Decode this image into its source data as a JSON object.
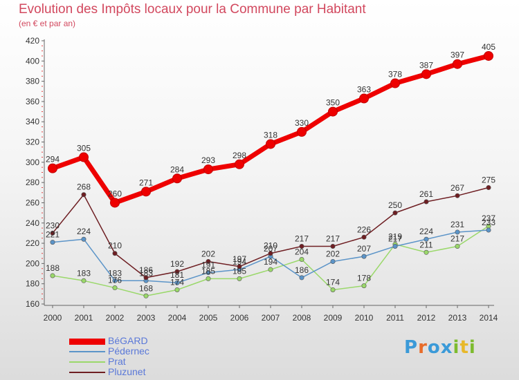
{
  "header": {
    "title": "Evolution des Impôts locaux pour la Commune par Habitant",
    "subtitle": "(en € et par an)"
  },
  "logo": {
    "text": "Proxiti",
    "colors": [
      "#3b9ad8",
      "#e86c2a",
      "#3b9ad8",
      "#3b9ad8",
      "#7dbb2e",
      "#e8b82a",
      "#7dbb2e"
    ]
  },
  "chart_data": {
    "type": "line",
    "x": [
      "2000",
      "2001",
      "2002",
      "2003",
      "2004",
      "2005",
      "2006",
      "2007",
      "2008",
      "2009",
      "2010",
      "2011",
      "2012",
      "2013",
      "2014"
    ],
    "ylim": [
      160,
      420
    ],
    "yticks": [
      160,
      180,
      200,
      220,
      240,
      260,
      280,
      300,
      320,
      340,
      360,
      380,
      400,
      420
    ],
    "grid": false,
    "legend_position": "bottom-left",
    "series": [
      {
        "name": "BéGARD",
        "color": "#ee0000",
        "values": [
          294,
          305,
          260,
          271,
          284,
          293,
          298,
          318,
          330,
          350,
          363,
          378,
          387,
          397,
          405
        ],
        "labels": [
          "294",
          "305",
          "260",
          "271",
          "284",
          "293",
          "298",
          "318",
          "330",
          "350",
          "363",
          "378",
          "387",
          "397",
          "405"
        ]
      },
      {
        "name": "Pédernec",
        "color": "#5b94c8",
        "values": [
          221,
          224,
          183,
          183,
          181,
          191,
          194,
          207,
          186,
          202,
          207,
          217,
          224,
          231,
          233
        ],
        "labels": [
          "221",
          "224",
          "183",
          "183",
          "181",
          "191",
          "194",
          "207",
          "186",
          "202",
          "207",
          "217",
          "224",
          "231",
          "233"
        ]
      },
      {
        "name": "Prat",
        "color": "#9ad86a",
        "values": [
          188,
          183,
          176,
          168,
          174,
          185,
          185,
          194,
          204,
          174,
          178,
          219,
          211,
          217,
          237
        ],
        "labels": [
          "188",
          "183",
          "176",
          "168",
          "174",
          "185",
          "185",
          "194",
          "204",
          "174",
          "178",
          "219",
          "211",
          "217",
          "237"
        ]
      },
      {
        "name": "Pluzunet",
        "color": "#6e1e22",
        "values": [
          230,
          268,
          210,
          186,
          192,
          202,
          197,
          210,
          217,
          217,
          226,
          250,
          261,
          267,
          275
        ],
        "labels": [
          "230",
          "268",
          "210",
          "186",
          "192",
          "202",
          "197",
          "210",
          "217",
          "217",
          "226",
          "250",
          "261",
          "267",
          "275"
        ]
      }
    ]
  }
}
